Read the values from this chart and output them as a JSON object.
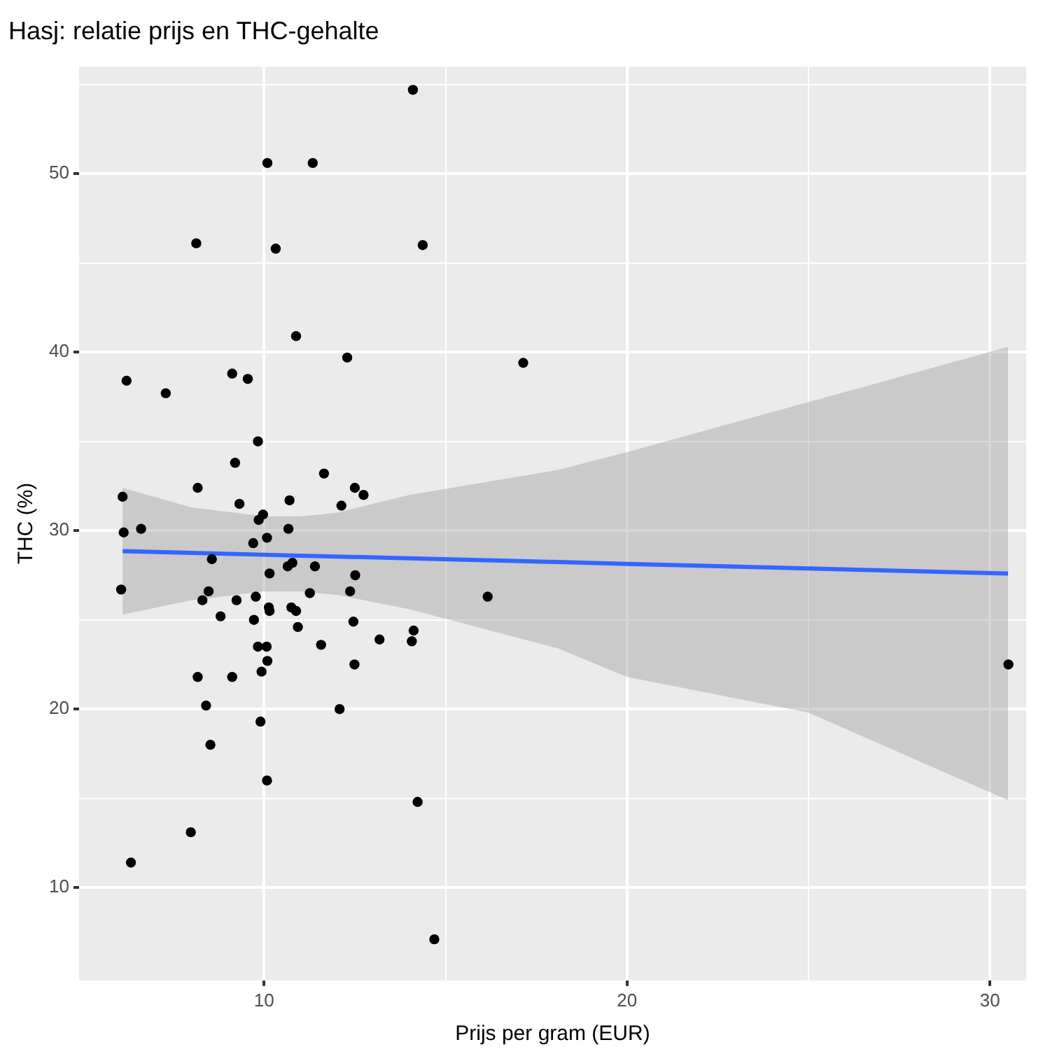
{
  "chart_data": {
    "type": "scatter",
    "title": "Hasj: relatie prijs en THC-gehalte",
    "xlabel": "Prijs per gram (EUR)",
    "ylabel": "THC (%)",
    "xlim": [
      4.9,
      31.0
    ],
    "xticks": [
      10,
      {
        "value": 15,
        "label": null
      },
      20,
      {
        "value": 25,
        "label": null
      },
      30
    ],
    "ylim": [
      4.8,
      56.0
    ],
    "yticks": [
      10,
      {
        "value": 15,
        "label": null
      },
      20,
      {
        "value": 25,
        "label": null
      },
      30,
      {
        "value": 35,
        "label": null
      },
      40,
      {
        "value": 45,
        "label": null
      },
      50,
      {
        "value": 55,
        "label": null
      }
    ],
    "grid": true,
    "series": [
      {
        "type": "scatter",
        "color": "#000000",
        "marker": "circle",
        "x": [
          14.1,
          10.09,
          11.34,
          8.13,
          10.32,
          14.37,
          10.88,
          12.29,
          17.14,
          6.21,
          7.29,
          9.12,
          9.55,
          9.83,
          9.2,
          11.65,
          8.17,
          12.5,
          12.74,
          6.1,
          9.32,
          10.7,
          12.13,
          9.97,
          9.85,
          6.13,
          6.61,
          10.67,
          10.08,
          9.7,
          8.56,
          10.78,
          10.65,
          11.4,
          10.15,
          12.51,
          6.06,
          8.47,
          12.37,
          16.16,
          11.26,
          8.3,
          9.24,
          9.77,
          10.13,
          10.15,
          10.75,
          10.88,
          8.8,
          9.72,
          12.46,
          10.93,
          14.12,
          14.07,
          13.18,
          11.57,
          9.83,
          10.07,
          10.09,
          12.49,
          9.93,
          8.17,
          9.12,
          8.4,
          12.08,
          9.9,
          8.52,
          10.08,
          14.23,
          7.98,
          6.33,
          14.69,
          30.51
        ],
        "values": [
          54.7,
          50.6,
          50.6,
          46.1,
          45.8,
          46.0,
          40.9,
          39.7,
          39.4,
          38.4,
          37.7,
          38.8,
          38.5,
          35.0,
          33.8,
          33.2,
          32.4,
          32.4,
          32.0,
          31.9,
          31.5,
          31.7,
          31.4,
          30.9,
          30.6,
          29.9,
          30.1,
          30.1,
          29.6,
          29.3,
          28.4,
          28.2,
          28.0,
          28.0,
          27.6,
          27.5,
          26.7,
          26.6,
          26.6,
          26.3,
          26.5,
          26.1,
          26.1,
          26.3,
          25.7,
          25.5,
          25.7,
          25.5,
          25.2,
          25.0,
          24.9,
          24.6,
          24.4,
          23.8,
          23.9,
          23.6,
          23.5,
          23.5,
          22.7,
          22.5,
          22.1,
          21.8,
          21.8,
          20.2,
          20.0,
          19.3,
          18.0,
          16.0,
          14.8,
          13.1,
          11.4,
          7.1,
          22.5
        ]
      },
      {
        "type": "line",
        "color": "#3366ff",
        "marker": "none",
        "x": [
          6.1,
          8,
          10,
          11,
          12,
          14,
          18.1,
          20,
          25,
          30.5
        ],
        "values": [
          28.85,
          28.75,
          28.65,
          28.6,
          28.55,
          28.45,
          28.24,
          28.14,
          27.88,
          27.6
        ],
        "lower": [
          25.3,
          26.1,
          26.6,
          26.6,
          26.4,
          25.6,
          23.4,
          21.8,
          19.8,
          14.9
        ],
        "upper": [
          32.4,
          31.3,
          30.8,
          30.8,
          31.0,
          32.0,
          33.4,
          34.4,
          37.2,
          40.3
        ]
      }
    ]
  }
}
